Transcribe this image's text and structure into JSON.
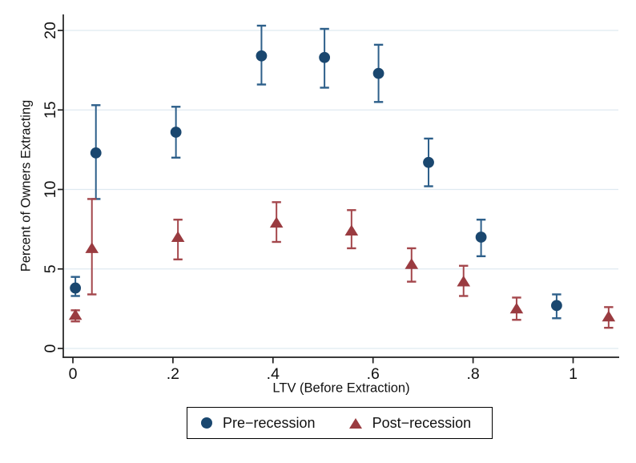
{
  "chart_data": {
    "type": "scatter",
    "title": "",
    "xlabel": "LTV (Before Extraction)",
    "ylabel": "Percent of Owners Extracting",
    "xlim": [
      -0.02,
      1.09
    ],
    "ylim": [
      0,
      21
    ],
    "grid": "horizontal gridlines at each y tick",
    "legend_position": "bottom-center boxed",
    "xticks": [
      {
        "v": 0,
        "label": "0"
      },
      {
        "v": 0.2,
        "label": ".2"
      },
      {
        "v": 0.4,
        "label": ".4"
      },
      {
        "v": 0.6,
        "label": ".6"
      },
      {
        "v": 0.8,
        "label": ".8"
      },
      {
        "v": 1,
        "label": "1"
      }
    ],
    "yticks": [
      {
        "v": 0,
        "label": "0"
      },
      {
        "v": 5,
        "label": "5"
      },
      {
        "v": 10,
        "label": "10"
      },
      {
        "v": 15,
        "label": "15"
      },
      {
        "v": 20,
        "label": "20"
      }
    ],
    "style": {
      "background": "#ffffff",
      "axis_color": "#1f1f1f",
      "grid_color": "#dfeaf1",
      "text_color": "#111111",
      "legend_border": "#000000"
    },
    "series": [
      {
        "name": "Pre−recession",
        "marker": "circle",
        "color": "#1a476f",
        "spike_color": "#2d5f8a",
        "points": [
          {
            "x": 0.005,
            "y": 3.8,
            "lo": 3.3,
            "hi": 4.5
          },
          {
            "x": 0.046,
            "y": 12.3,
            "lo": 9.4,
            "hi": 15.3
          },
          {
            "x": 0.206,
            "y": 13.6,
            "lo": 12.0,
            "hi": 15.2
          },
          {
            "x": 0.377,
            "y": 18.4,
            "lo": 16.6,
            "hi": 20.3
          },
          {
            "x": 0.503,
            "y": 18.3,
            "lo": 16.4,
            "hi": 20.1
          },
          {
            "x": 0.611,
            "y": 17.3,
            "lo": 15.5,
            "hi": 19.1
          },
          {
            "x": 0.711,
            "y": 11.7,
            "lo": 10.2,
            "hi": 13.2
          },
          {
            "x": 0.816,
            "y": 7.0,
            "lo": 5.8,
            "hi": 8.1
          },
          {
            "x": 0.967,
            "y": 2.7,
            "lo": 1.9,
            "hi": 3.4
          }
        ]
      },
      {
        "name": "Post−recession",
        "marker": "triangle",
        "color": "#9a3b40",
        "spike_color": "#a4474c",
        "points": [
          {
            "x": 0.005,
            "y": 2.1,
            "lo": 1.7,
            "hi": 2.4
          },
          {
            "x": 0.038,
            "y": 6.3,
            "lo": 3.4,
            "hi": 9.4
          },
          {
            "x": 0.21,
            "y": 7.0,
            "lo": 5.6,
            "hi": 8.1
          },
          {
            "x": 0.407,
            "y": 7.9,
            "lo": 6.7,
            "hi": 9.2
          },
          {
            "x": 0.557,
            "y": 7.4,
            "lo": 6.3,
            "hi": 8.7
          },
          {
            "x": 0.677,
            "y": 5.3,
            "lo": 4.2,
            "hi": 6.3
          },
          {
            "x": 0.781,
            "y": 4.2,
            "lo": 3.3,
            "hi": 5.2
          },
          {
            "x": 0.887,
            "y": 2.5,
            "lo": 1.8,
            "hi": 3.2
          },
          {
            "x": 1.071,
            "y": 2.0,
            "lo": 1.3,
            "hi": 2.6
          }
        ]
      }
    ]
  }
}
